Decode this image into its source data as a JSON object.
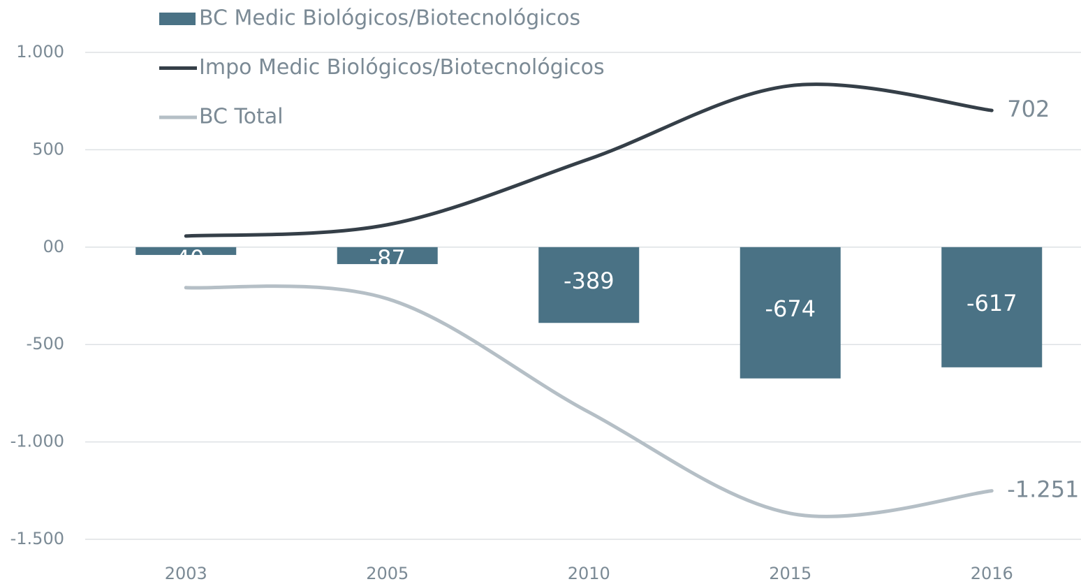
{
  "chart_data": {
    "type": "bar-line",
    "categories": [
      "2003",
      "2005",
      "2010",
      "2015",
      "2016"
    ],
    "series": [
      {
        "name": "BC Medic Biológicos/Biotecnológicos",
        "type": "bar",
        "color": "#4a7285",
        "values": [
          -40,
          -87,
          -389,
          -674,
          -617
        ]
      },
      {
        "name": "Impo Medic Biológicos/Biotecnológicos",
        "type": "line",
        "color": "#353f48",
        "values": [
          57,
          115,
          452,
          829,
          702
        ]
      },
      {
        "name": "BC Total",
        "type": "line",
        "color": "#b5bfc6",
        "values": [
          -208,
          -265,
          -847,
          -1367,
          -1251
        ],
        "value_labels": [
          null,
          null,
          null,
          null,
          "-1.251"
        ]
      }
    ],
    "ylim": [
      -1500,
      1000
    ],
    "yticks": [
      {
        "value": 1000,
        "label": "1.000"
      },
      500,
      {
        "value": 0,
        "label": "00"
      },
      -500,
      {
        "value": -1000,
        "label": "-1.000"
      },
      {
        "value": -1500,
        "label": "-1.500"
      }
    ],
    "grid": true,
    "legend": "top-left"
  }
}
